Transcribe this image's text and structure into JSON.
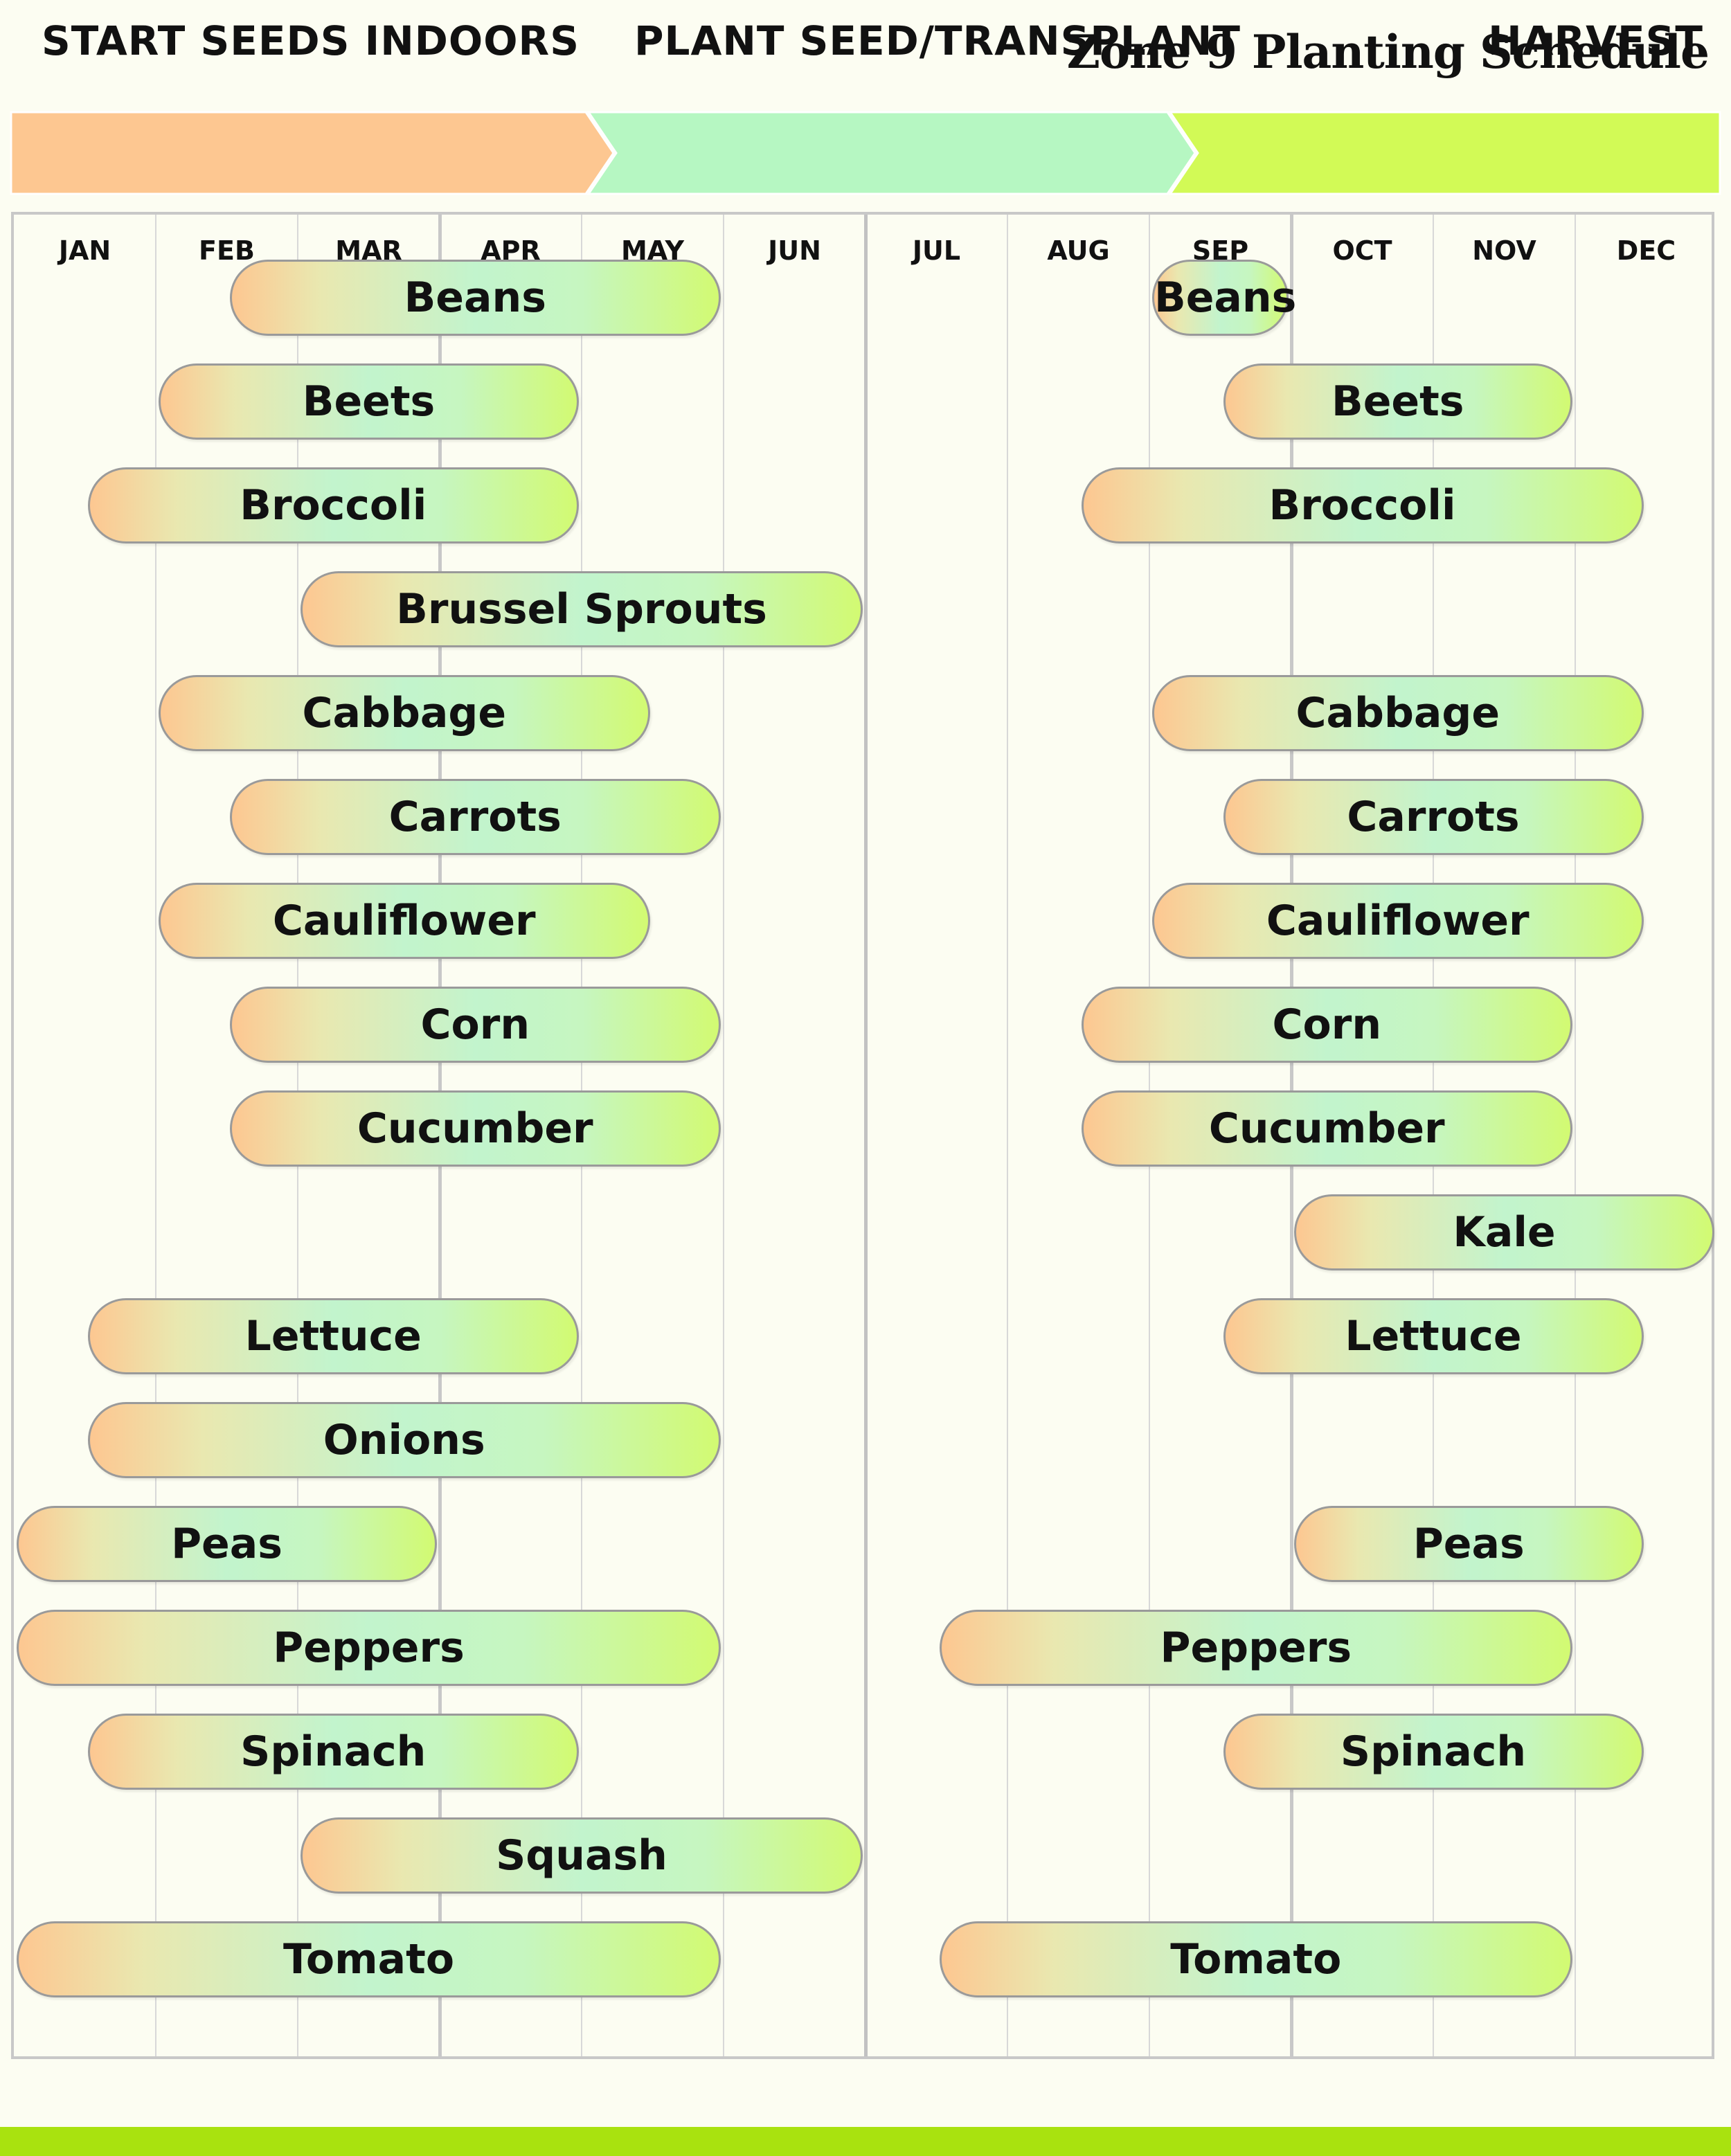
{
  "title": "Zone 9 Planting Schedule",
  "legend": [
    {
      "label": "START SEEDS INDOORS",
      "color": "#fdc791"
    },
    {
      "label": "PLANT SEED/TRANSPLANT",
      "color": "#b6f7c2"
    },
    {
      "label": "HARVEST",
      "color": "#d2fa56"
    }
  ],
  "months": [
    "JAN",
    "FEB",
    "MAR",
    "APR",
    "MAY",
    "JUN",
    "JUL",
    "AUG",
    "SEP",
    "OCT",
    "NOV",
    "DEC"
  ],
  "colors": {
    "bar_start": "#fdc791",
    "bar_mid": "#c2f4cd",
    "bar_end": "#d2fa72",
    "bottom_bar": "#a9e20f"
  },
  "chart_data": {
    "type": "gantt",
    "title": "Zone 9 Planting Schedule",
    "x_axis": "month (1 = Jan start, 13 = Dec end)",
    "crops": [
      "Beans",
      "Beets",
      "Broccoli",
      "Brussel Sprouts",
      "Cabbage",
      "Carrots",
      "Cauliflower",
      "Corn",
      "Cucumber",
      "Kale",
      "Lettuce",
      "Onions",
      "Peas",
      "Peppers",
      "Spinach",
      "Squash",
      "Tomato"
    ],
    "bars": [
      {
        "crop": "Beans",
        "label": "Beans",
        "start": 2.5,
        "end": 6.0
      },
      {
        "crop": "Beans",
        "label": "Beans",
        "start": 9.0,
        "end": 10.0
      },
      {
        "crop": "Beets",
        "label": "Beets",
        "start": 2.0,
        "end": 5.0
      },
      {
        "crop": "Beets",
        "label": "Beets",
        "start": 9.5,
        "end": 12.0
      },
      {
        "crop": "Broccoli",
        "label": "Broccoli",
        "start": 1.5,
        "end": 5.0
      },
      {
        "crop": "Broccoli",
        "label": "Broccoli",
        "start": 8.5,
        "end": 12.5
      },
      {
        "crop": "Brussel Sprouts",
        "label": "Brussel Sprouts",
        "start": 3.0,
        "end": 7.0
      },
      {
        "crop": "Cabbage",
        "label": "Cabbage",
        "start": 2.0,
        "end": 5.5
      },
      {
        "crop": "Cabbage",
        "label": "Cabbage",
        "start": 9.0,
        "end": 12.5
      },
      {
        "crop": "Carrots",
        "label": "Carrots",
        "start": 2.5,
        "end": 6.0
      },
      {
        "crop": "Carrots",
        "label": "Carrots",
        "start": 9.5,
        "end": 12.5
      },
      {
        "crop": "Cauliflower",
        "label": "Cauliflower",
        "start": 2.0,
        "end": 5.5
      },
      {
        "crop": "Cauliflower",
        "label": "Cauliflower",
        "start": 9.0,
        "end": 12.5
      },
      {
        "crop": "Corn",
        "label": "Corn",
        "start": 2.5,
        "end": 6.0
      },
      {
        "crop": "Corn",
        "label": "Corn",
        "start": 8.5,
        "end": 12.0
      },
      {
        "crop": "Cucumber",
        "label": "Cucumber",
        "start": 2.5,
        "end": 6.0
      },
      {
        "crop": "Cucumber",
        "label": "Cucumber",
        "start": 8.5,
        "end": 12.0
      },
      {
        "crop": "Kale",
        "label": "Kale",
        "start": 10.0,
        "end": 13.0
      },
      {
        "crop": "Lettuce",
        "label": "Lettuce",
        "start": 1.5,
        "end": 5.0
      },
      {
        "crop": "Lettuce",
        "label": "Lettuce",
        "start": 9.5,
        "end": 12.5
      },
      {
        "crop": "Onions",
        "label": "Onions",
        "start": 1.5,
        "end": 6.0
      },
      {
        "crop": "Peas",
        "label": "Peas",
        "start": 1.0,
        "end": 4.0
      },
      {
        "crop": "Peas",
        "label": "Peas",
        "start": 10.0,
        "end": 12.5
      },
      {
        "crop": "Peppers",
        "label": "Peppers",
        "start": 1.0,
        "end": 6.0
      },
      {
        "crop": "Peppers",
        "label": "Peppers",
        "start": 7.5,
        "end": 12.0
      },
      {
        "crop": "Spinach",
        "label": "Spinach",
        "start": 1.5,
        "end": 5.0
      },
      {
        "crop": "Spinach",
        "label": "Spinach",
        "start": 9.5,
        "end": 12.5
      },
      {
        "crop": "Squash",
        "label": "Squash",
        "start": 3.0,
        "end": 7.0
      },
      {
        "crop": "Tomato",
        "label": "Tomato",
        "start": 1.0,
        "end": 6.0
      },
      {
        "crop": "Tomato",
        "label": "Tomato",
        "start": 7.5,
        "end": 12.0
      }
    ]
  }
}
